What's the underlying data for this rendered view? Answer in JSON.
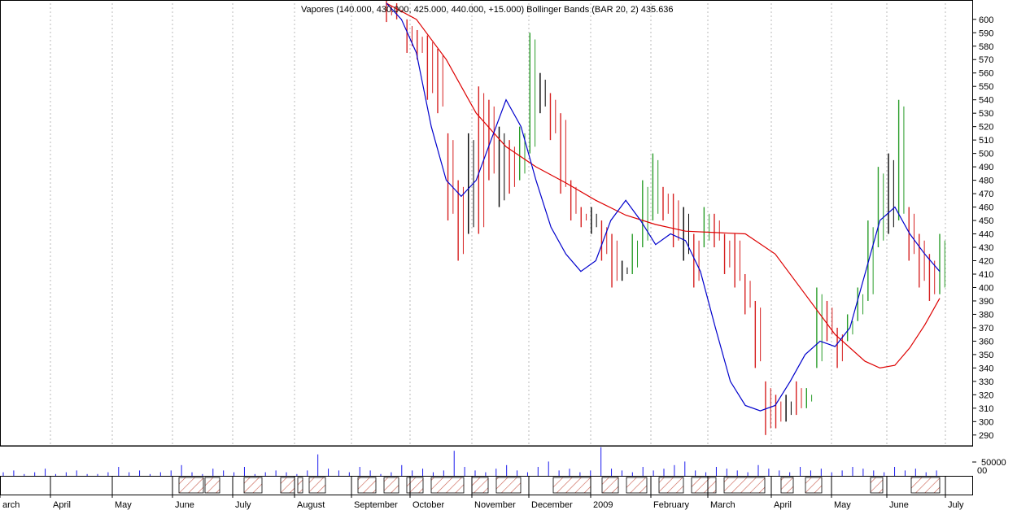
{
  "title": "Vapores (140.000, 430.000, 425.000, 440.000, +15.000) Bollinger Bands (BAR 20, 2) 435.636",
  "volume_scale_label": "50000",
  "volume_scale_label2": "00",
  "colors": {
    "up": "#2a9d2a",
    "down": "#d62020",
    "neutral": "#000000",
    "fast_ma": "#0000cc",
    "slow_ma": "#dd0000",
    "volume": "#1a1aee",
    "grid": "#b8b8b8",
    "hatch": "#c85a4a"
  },
  "chart_data": {
    "type": "bar",
    "subtype": "ohlc-price-chart",
    "ylim": [
      282,
      612
    ],
    "yticks": [
      290,
      300,
      310,
      320,
      330,
      340,
      350,
      360,
      370,
      380,
      390,
      400,
      410,
      420,
      430,
      440,
      450,
      460,
      470,
      480,
      490,
      500,
      510,
      520,
      530,
      540,
      550,
      560,
      570,
      580,
      590,
      600
    ],
    "month_labels": [
      "arch",
      "April",
      "May",
      "June",
      "July",
      "August",
      "September",
      "October",
      "November",
      "December",
      "2009",
      "February",
      "March",
      "April",
      "May",
      "June",
      "July"
    ],
    "price_bars": [
      {
        "i": 0,
        "low": 598,
        "high": 615,
        "c": "down"
      },
      {
        "i": 1,
        "low": 600,
        "high": 612,
        "c": "down"
      },
      {
        "i": 2,
        "low": 575,
        "high": 600,
        "c": "down"
      },
      {
        "i": 3,
        "low": 570,
        "high": 592,
        "c": "down"
      },
      {
        "i": 4,
        "low": 540,
        "high": 588,
        "c": "down"
      },
      {
        "i": 5,
        "low": 530,
        "high": 578,
        "c": "down"
      },
      {
        "i": 6,
        "low": 450,
        "high": 515,
        "c": "down"
      },
      {
        "i": 7,
        "low": 420,
        "high": 480,
        "c": "down"
      },
      {
        "i": 8,
        "low": 440,
        "high": 515,
        "c": "neutral"
      },
      {
        "i": 9,
        "low": 440,
        "high": 550,
        "c": "down"
      },
      {
        "i": 10,
        "low": 480,
        "high": 540,
        "c": "down"
      },
      {
        "i": 11,
        "low": 460,
        "high": 520,
        "c": "neutral"
      },
      {
        "i": 12,
        "low": 470,
        "high": 510,
        "c": "down"
      },
      {
        "i": 13,
        "low": 480,
        "high": 520,
        "c": "up"
      },
      {
        "i": 14,
        "low": 500,
        "high": 590,
        "c": "up"
      },
      {
        "i": 15,
        "low": 530,
        "high": 560,
        "c": "neutral"
      },
      {
        "i": 16,
        "low": 510,
        "high": 545,
        "c": "down"
      },
      {
        "i": 17,
        "low": 470,
        "high": 530,
        "c": "down"
      },
      {
        "i": 18,
        "low": 450,
        "high": 480,
        "c": "down"
      },
      {
        "i": 19,
        "low": 445,
        "high": 460,
        "c": "down"
      },
      {
        "i": 20,
        "low": 440,
        "high": 460,
        "c": "neutral"
      },
      {
        "i": 21,
        "low": 420,
        "high": 450,
        "c": "down"
      },
      {
        "i": 22,
        "low": 400,
        "high": 440,
        "c": "down"
      },
      {
        "i": 23,
        "low": 405,
        "high": 420,
        "c": "neutral"
      },
      {
        "i": 24,
        "low": 410,
        "high": 440,
        "c": "up"
      },
      {
        "i": 25,
        "low": 430,
        "high": 480,
        "c": "up"
      },
      {
        "i": 26,
        "low": 450,
        "high": 500,
        "c": "up"
      },
      {
        "i": 27,
        "low": 450,
        "high": 475,
        "c": "down"
      },
      {
        "i": 28,
        "low": 430,
        "high": 470,
        "c": "down"
      },
      {
        "i": 29,
        "low": 420,
        "high": 460,
        "c": "neutral"
      },
      {
        "i": 30,
        "low": 400,
        "high": 440,
        "c": "down"
      },
      {
        "i": 31,
        "low": 430,
        "high": 460,
        "c": "up"
      },
      {
        "i": 32,
        "low": 430,
        "high": 455,
        "c": "down"
      },
      {
        "i": 33,
        "low": 410,
        "high": 440,
        "c": "down"
      },
      {
        "i": 34,
        "low": 400,
        "high": 440,
        "c": "down"
      },
      {
        "i": 35,
        "low": 380,
        "high": 410,
        "c": "down"
      },
      {
        "i": 36,
        "low": 340,
        "high": 390,
        "c": "down"
      },
      {
        "i": 37,
        "low": 290,
        "high": 330,
        "c": "down"
      },
      {
        "i": 38,
        "low": 295,
        "high": 320,
        "c": "down"
      },
      {
        "i": 39,
        "low": 300,
        "high": 320,
        "c": "neutral"
      },
      {
        "i": 40,
        "low": 305,
        "high": 330,
        "c": "down"
      },
      {
        "i": 41,
        "low": 310,
        "high": 325,
        "c": "up"
      },
      {
        "i": 42,
        "low": 340,
        "high": 400,
        "c": "up"
      },
      {
        "i": 43,
        "low": 360,
        "high": 390,
        "c": "down"
      },
      {
        "i": 44,
        "low": 340,
        "high": 370,
        "c": "down"
      },
      {
        "i": 45,
        "low": 360,
        "high": 380,
        "c": "up"
      },
      {
        "i": 46,
        "low": 375,
        "high": 400,
        "c": "up"
      },
      {
        "i": 47,
        "low": 390,
        "high": 450,
        "c": "up"
      },
      {
        "i": 48,
        "low": 430,
        "high": 490,
        "c": "up"
      },
      {
        "i": 49,
        "low": 440,
        "high": 500,
        "c": "neutral"
      },
      {
        "i": 50,
        "low": 450,
        "high": 540,
        "c": "up"
      },
      {
        "i": 51,
        "low": 420,
        "high": 460,
        "c": "down"
      },
      {
        "i": 52,
        "low": 400,
        "high": 440,
        "c": "down"
      },
      {
        "i": 53,
        "low": 390,
        "high": 425,
        "c": "down"
      },
      {
        "i": 54,
        "low": 395,
        "high": 440,
        "c": "up"
      }
    ],
    "fast_ma_points": [
      [
        0,
        612
      ],
      [
        2,
        600
      ],
      [
        4,
        575
      ],
      [
        6,
        520
      ],
      [
        8,
        480
      ],
      [
        10,
        468
      ],
      [
        12,
        480
      ],
      [
        14,
        510
      ],
      [
        16,
        540
      ],
      [
        18,
        520
      ],
      [
        20,
        480
      ],
      [
        22,
        445
      ],
      [
        24,
        425
      ],
      [
        26,
        412
      ],
      [
        28,
        420
      ],
      [
        30,
        450
      ],
      [
        32,
        465
      ],
      [
        34,
        450
      ],
      [
        36,
        432
      ],
      [
        38,
        440
      ],
      [
        40,
        435
      ],
      [
        42,
        412
      ],
      [
        44,
        370
      ],
      [
        46,
        330
      ],
      [
        48,
        312
      ],
      [
        50,
        308
      ],
      [
        52,
        312
      ],
      [
        54,
        330
      ],
      [
        56,
        350
      ],
      [
        58,
        360
      ],
      [
        60,
        356
      ],
      [
        62,
        370
      ],
      [
        64,
        410
      ],
      [
        66,
        450
      ],
      [
        68,
        460
      ],
      [
        70,
        440
      ],
      [
        72,
        425
      ],
      [
        74,
        412
      ]
    ],
    "slow_ma_points": [
      [
        0,
        612
      ],
      [
        4,
        600
      ],
      [
        8,
        570
      ],
      [
        12,
        530
      ],
      [
        16,
        505
      ],
      [
        20,
        490
      ],
      [
        24,
        478
      ],
      [
        28,
        465
      ],
      [
        32,
        454
      ],
      [
        36,
        447
      ],
      [
        40,
        442
      ],
      [
        44,
        441
      ],
      [
        48,
        440
      ],
      [
        52,
        425
      ],
      [
        56,
        395
      ],
      [
        60,
        365
      ],
      [
        64,
        345
      ],
      [
        66,
        340
      ],
      [
        68,
        342
      ],
      [
        70,
        355
      ],
      [
        72,
        372
      ],
      [
        74,
        392
      ]
    ],
    "volume_bars": [
      2,
      3,
      1,
      2,
      4,
      1,
      2,
      3,
      1,
      1,
      2,
      5,
      2,
      3,
      1,
      2,
      3,
      6,
      2,
      1,
      4,
      3,
      2,
      5,
      1,
      2,
      3,
      2,
      1,
      3,
      12,
      4,
      3,
      2,
      5,
      3,
      1,
      2,
      6,
      3,
      4,
      2,
      3,
      14,
      5,
      3,
      2,
      4,
      6,
      3,
      2,
      5,
      8,
      3,
      4,
      2,
      3,
      16,
      4,
      3,
      2,
      5,
      3,
      4,
      6,
      8,
      3,
      2,
      5,
      4,
      3,
      2,
      6,
      4,
      3,
      2,
      5,
      3,
      4,
      2,
      3,
      5,
      4,
      3,
      2,
      5,
      3,
      4,
      2,
      3
    ]
  }
}
